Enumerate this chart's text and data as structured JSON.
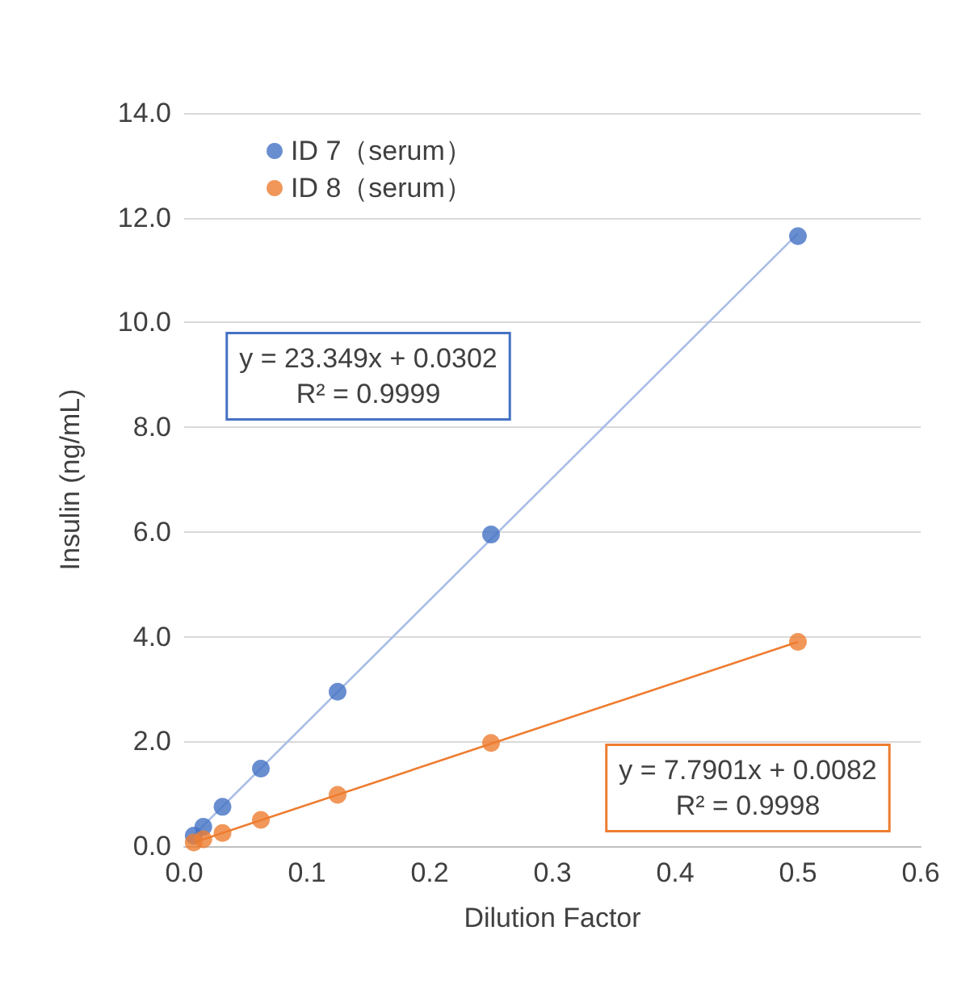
{
  "chart_data": {
    "type": "scatter",
    "xlabel": "Dilution Factor",
    "ylabel": "Insulin (ng/mL)",
    "xlim": [
      0,
      0.6
    ],
    "xticks": [
      {
        "value": 0,
        "label": "0.0"
      },
      {
        "value": 0.1,
        "label": "0.1"
      },
      {
        "value": 0.2,
        "label": "0.2"
      },
      {
        "value": 0.3,
        "label": "0.3"
      },
      {
        "value": 0.4,
        "label": "0.4"
      },
      {
        "value": 0.5,
        "label": "0.5"
      },
      {
        "value": 0.6,
        "label": "0.6"
      }
    ],
    "ylim": [
      0,
      14
    ],
    "yticks": [
      {
        "value": 0,
        "label": "0.0"
      },
      {
        "value": 2,
        "label": "2.0"
      },
      {
        "value": 4,
        "label": "4.0"
      },
      {
        "value": 6,
        "label": "6.0"
      },
      {
        "value": 8,
        "label": "8.0"
      },
      {
        "value": 10,
        "label": "10.0"
      },
      {
        "value": 12,
        "label": "12.0"
      },
      {
        "value": 14,
        "label": "14.0"
      }
    ],
    "grid": "y",
    "legend": "top left",
    "series": [
      {
        "name": "ID 7（serum）",
        "marker": "circle",
        "color": "#4472c4",
        "x": [
          0.0078125,
          0.015625,
          0.03125,
          0.0625,
          0.125,
          0.25,
          0.5
        ],
        "values": [
          0.2,
          0.37,
          0.75,
          1.48,
          2.95,
          5.95,
          11.65
        ]
      },
      {
        "name": "ID 8（serum）",
        "marker": "circle",
        "color": "#ed7d31",
        "x": [
          0.0078125,
          0.015625,
          0.03125,
          0.0625,
          0.125,
          0.25,
          0.5
        ],
        "values": [
          0.07,
          0.13,
          0.25,
          0.5,
          0.98,
          1.97,
          3.9
        ]
      },
      {
        "type": "line",
        "marker": "none",
        "color": "#a9bde6",
        "x": [
          0.0078125,
          0.5
        ],
        "values": [
          0.21,
          11.7
        ]
      },
      {
        "type": "line",
        "marker": "none",
        "color": "#ed7d31",
        "x": [
          0.0078125,
          0.5
        ],
        "values": [
          0.07,
          3.9
        ]
      }
    ],
    "annotations": [
      "y = 23.349x + 0.0302\nR² = 0.9999",
      "y = 7.7901x + 0.0082\nR² = 0.9998"
    ]
  }
}
